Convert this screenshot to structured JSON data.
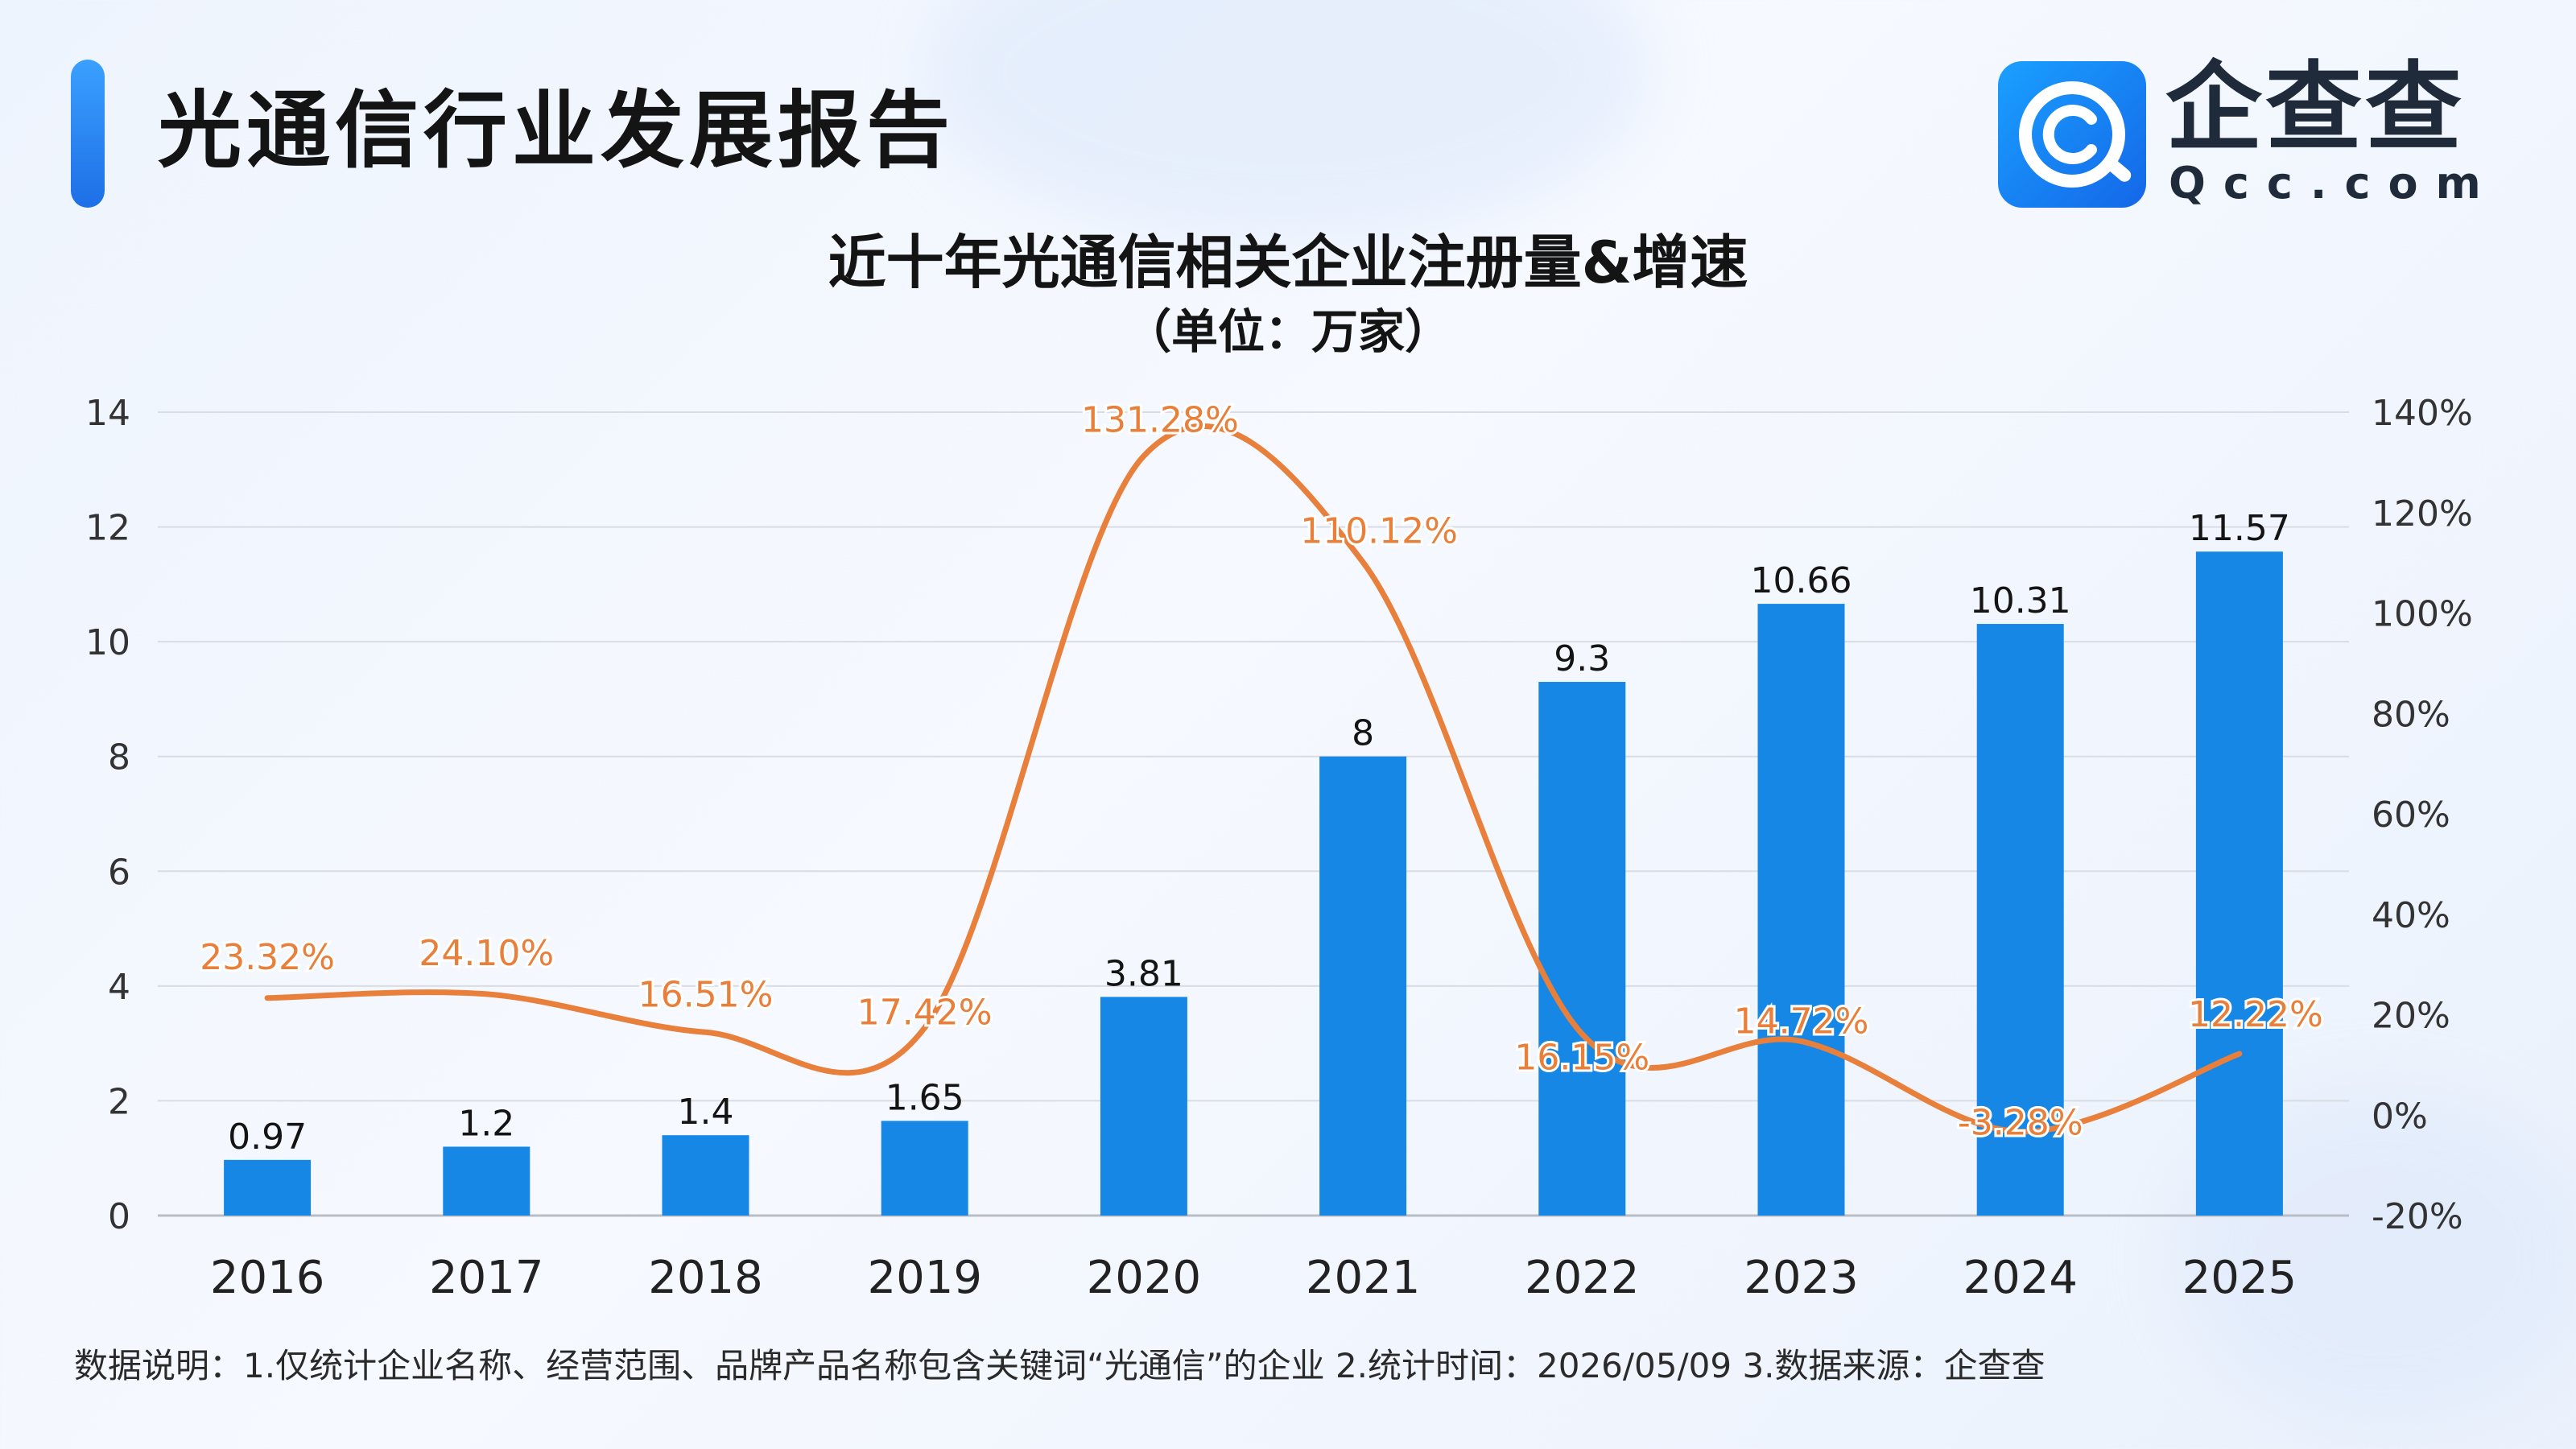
{
  "header": {
    "title": "光通信行业发展报告",
    "logo_cn": "企查查",
    "logo_en": "Qcc.com"
  },
  "colors": {
    "bar": "#1787e6",
    "line": "#e87f3a",
    "accent": "#1e6fe6"
  },
  "chart_data": {
    "type": "bar",
    "title": "近十年光通信相关企业注册量&增速",
    "subtitle": "（单位：万家）",
    "categories": [
      "2016",
      "2017",
      "2018",
      "2019",
      "2020",
      "2021",
      "2022",
      "2023",
      "2024",
      "2025"
    ],
    "series": [
      {
        "type": "bar",
        "axis": "left",
        "values": [
          0.97,
          1.2,
          1.4,
          1.65,
          3.81,
          8,
          9.3,
          10.66,
          10.31,
          11.57
        ],
        "labels": [
          "0.97",
          "1.2",
          "1.4",
          "1.65",
          "3.81",
          "8",
          "9.3",
          "10.66",
          "10.31",
          "11.57"
        ]
      },
      {
        "type": "line",
        "axis": "right",
        "values": [
          23.32,
          24.1,
          16.51,
          17.42,
          131.28,
          110.12,
          16.15,
          14.72,
          -3.28,
          12.22
        ],
        "labels": [
          "23.32%",
          "24.10%",
          "16.51%",
          "17.42%",
          "131.28%",
          "110.12%",
          "16.15%",
          "14.72%",
          "-3.28%",
          "12.22%"
        ]
      }
    ],
    "y_left": {
      "min": 0,
      "max": 14,
      "ticks": [
        "0",
        "2",
        "4",
        "6",
        "8",
        "10",
        "12",
        "14"
      ]
    },
    "y_right": {
      "min": -20,
      "max": 140,
      "ticks": [
        "-20%",
        "0%",
        "20%",
        "40%",
        "60%",
        "80%",
        "100%",
        "120%",
        "140%"
      ]
    },
    "grid": true
  },
  "footnote": "数据说明：1.仅统计企业名称、经营范围、品牌产品名称包含关键词“光通信”的企业   2.统计时间：2026/05/09    3.数据来源：企查查"
}
